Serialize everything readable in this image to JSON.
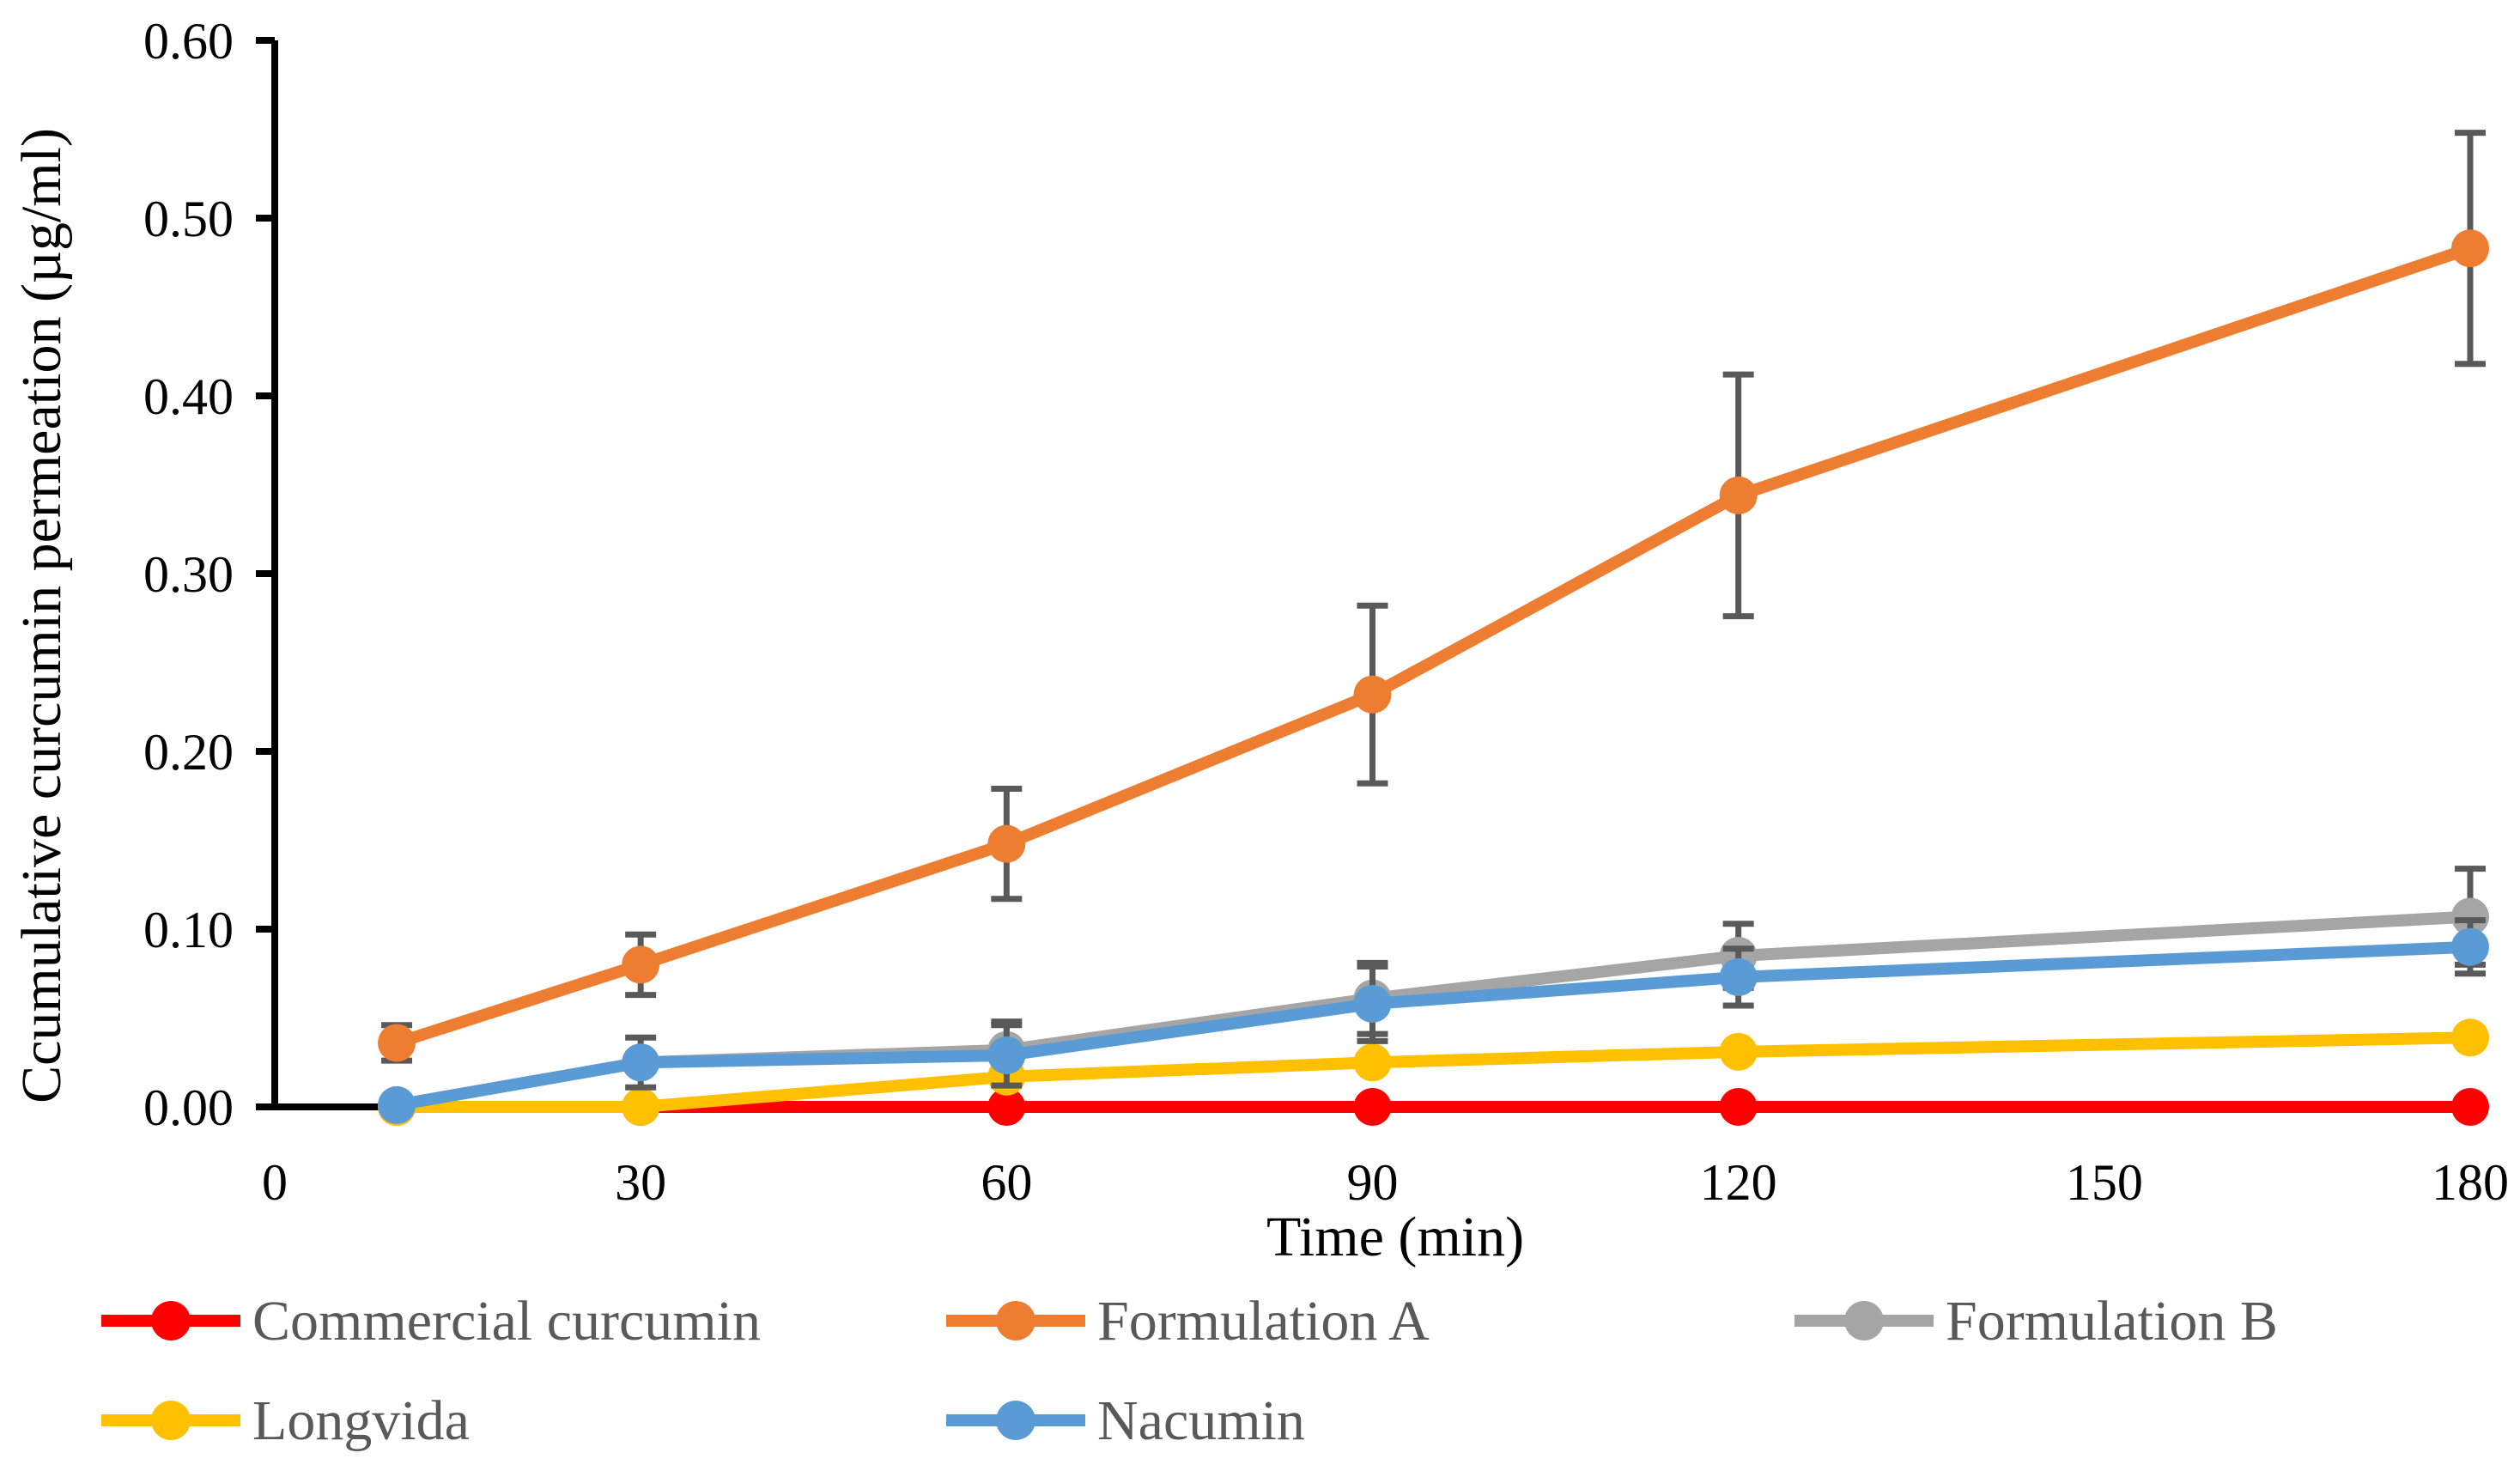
{
  "figure": {
    "background_color": "#FFFFFF",
    "axis_color": "#000000",
    "tick_label_color": "#000000",
    "legend_text_color": "#595959",
    "error_bar_color": "#595959"
  },
  "chart_data": {
    "type": "line",
    "title": "",
    "xlabel": "Time (min)",
    "ylabel": "Ccumulative curcumin permeation (µg/ml)",
    "x": [
      10,
      30,
      60,
      90,
      120,
      180
    ],
    "xlim": [
      0,
      180
    ],
    "xtick_values": [
      0,
      30,
      60,
      90,
      120,
      150,
      180
    ],
    "xtick_labels": [
      "0",
      "30",
      "60",
      "90",
      "120",
      "150",
      "180"
    ],
    "ylim": [
      0,
      0.6
    ],
    "ytick_values": [
      0.0,
      0.1,
      0.2,
      0.3,
      0.4,
      0.5,
      0.6
    ],
    "ytick_labels": [
      "0.00",
      "0.10",
      "0.20",
      "0.30",
      "0.40",
      "0.50",
      "0.60"
    ],
    "grid": false,
    "legend_position": "bottom",
    "series": [
      {
        "name": "Commercial curcumin",
        "color": "#FF0000",
        "values": [
          0.0,
          0.0,
          0.0,
          0.0,
          0.0,
          0.0
        ],
        "errors": [
          0,
          0,
          0,
          0,
          0,
          0
        ]
      },
      {
        "name": "Formulation A",
        "color": "#ED7D31",
        "values": [
          0.036,
          0.08,
          0.148,
          0.232,
          0.344,
          0.483
        ],
        "errors": [
          0.01,
          0.017,
          0.031,
          0.05,
          0.068,
          0.065
        ]
      },
      {
        "name": "Formulation B",
        "color": "#A5A5A5",
        "values": [
          0.001,
          0.025,
          0.032,
          0.061,
          0.085,
          0.107
        ],
        "errors": [
          0,
          0,
          0.016,
          0.02,
          0.018,
          0.027
        ]
      },
      {
        "name": "Longvida",
        "color": "#FFC000",
        "values": [
          0.0,
          0.0,
          0.017,
          0.025,
          0.031,
          0.039
        ],
        "errors": [
          0,
          0,
          0,
          0,
          0,
          0
        ]
      },
      {
        "name": "Nacumin",
        "color": "#5B9BD5",
        "values": [
          0.001,
          0.025,
          0.029,
          0.058,
          0.073,
          0.09
        ],
        "errors": [
          0,
          0.014,
          0.017,
          0.021,
          0.016,
          0.015
        ]
      }
    ]
  }
}
